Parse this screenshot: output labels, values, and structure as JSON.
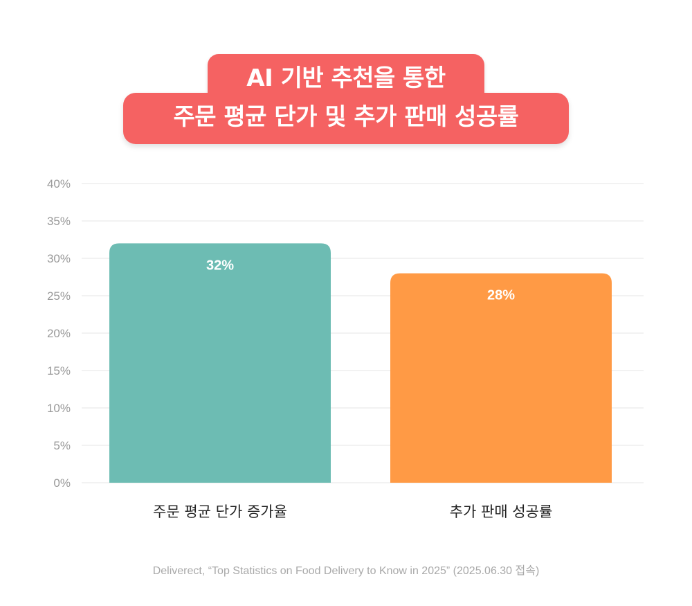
{
  "title": {
    "line1": "AI 기반 추천을 통한",
    "line2": "주문 평균 단가 및 추가 판매 성공률"
  },
  "chart_data": {
    "type": "bar",
    "categories": [
      "주문 평균 단가 증가율",
      "추가 판매 성공률"
    ],
    "values": [
      32,
      28
    ],
    "value_labels": [
      "32%",
      "28%"
    ],
    "colors": [
      "#6dbcb3",
      "#ff9a45"
    ],
    "ylim": [
      0,
      40
    ],
    "yticks": [
      0,
      5,
      10,
      15,
      20,
      25,
      30,
      35,
      40
    ],
    "ytick_labels": [
      "0%",
      "5%",
      "10%",
      "15%",
      "20%",
      "25%",
      "30%",
      "35%",
      "40%"
    ],
    "grid": true
  },
  "source": "Deliverect, “Top Statistics on Food Delivery to Know in 2025” (2025.06.30 접속)"
}
